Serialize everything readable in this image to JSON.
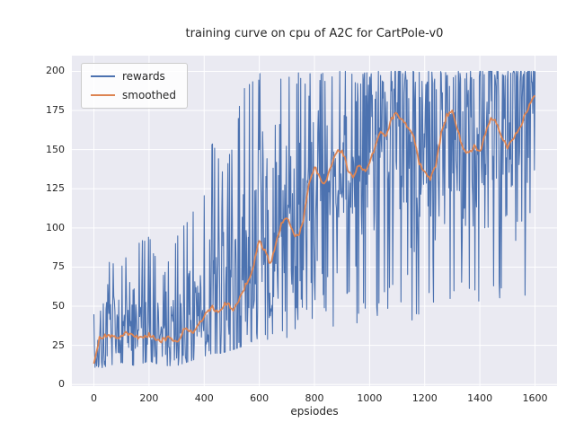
{
  "figure": {
    "background": "#ffffff",
    "panel_background": "#eaeaf2",
    "grid_color": "#ffffff",
    "tick_color": "#262626"
  },
  "chart_data": {
    "type": "line",
    "title": "training curve on cpu of A2C for CartPole-v0",
    "xlabel": "epsiodes",
    "ylabel": "",
    "xlim": [
      -80,
      1680
    ],
    "ylim": [
      -1,
      210
    ],
    "x_ticks": [
      0,
      200,
      400,
      600,
      800,
      1000,
      1200,
      1400,
      1600
    ],
    "y_ticks": [
      0,
      25,
      50,
      75,
      100,
      125,
      150,
      175,
      200
    ],
    "grid": true,
    "legend": {
      "position": "upper-left",
      "entries": [
        "rewards",
        "smoothed"
      ]
    },
    "series": [
      {
        "name": "rewards",
        "color": "#4c72b0",
        "style": "noisy-per-episode",
        "envelope": {
          "x": [
            0,
            50,
            100,
            150,
            200,
            250,
            300,
            350,
            400,
            430,
            460,
            500,
            550,
            600,
            650,
            700,
            750,
            800,
            850,
            900,
            950,
            1000,
            1050,
            1100,
            1150,
            1200,
            1250,
            1300,
            1350,
            1400,
            1450,
            1500,
            1550,
            1600
          ],
          "min": [
            9,
            12,
            14,
            12,
            15,
            12,
            12,
            15,
            18,
            20,
            20,
            22,
            25,
            30,
            28,
            30,
            30,
            38,
            35,
            40,
            35,
            40,
            45,
            50,
            40,
            30,
            35,
            45,
            40,
            35,
            50,
            45,
            55,
            60
          ],
          "max": [
            45,
            80,
            78,
            90,
            95,
            70,
            95,
            110,
            125,
            157,
            140,
            150,
            200,
            200,
            200,
            200,
            200,
            200,
            200,
            200,
            200,
            200,
            200,
            200,
            200,
            200,
            200,
            200,
            200,
            200,
            200,
            200,
            200,
            200
          ]
        }
      },
      {
        "name": "smoothed",
        "color": "#dd8452",
        "style": "smoothed-trend",
        "points": {
          "x": [
            0,
            20,
            50,
            80,
            120,
            160,
            200,
            240,
            280,
            300,
            330,
            360,
            400,
            430,
            450,
            480,
            510,
            540,
            570,
            600,
            620,
            640,
            660,
            680,
            700,
            720,
            740,
            760,
            780,
            800,
            820,
            840,
            860,
            880,
            900,
            920,
            940,
            960,
            980,
            1000,
            1020,
            1040,
            1060,
            1080,
            1100,
            1120,
            1140,
            1160,
            1180,
            1200,
            1220,
            1240,
            1260,
            1280,
            1300,
            1320,
            1340,
            1360,
            1380,
            1400,
            1420,
            1440,
            1460,
            1480,
            1500,
            1520,
            1540,
            1560,
            1580,
            1600
          ],
          "y": [
            14,
            30,
            32,
            30,
            33,
            30,
            32,
            28,
            30,
            26,
            36,
            33,
            44,
            50,
            46,
            52,
            48,
            60,
            70,
            92,
            85,
            77,
            90,
            103,
            106,
            98,
            94,
            106,
            127,
            140,
            132,
            128,
            140,
            148,
            150,
            138,
            132,
            140,
            136,
            142,
            152,
            162,
            158,
            170,
            173,
            168,
            165,
            158,
            142,
            136,
            132,
            140,
            160,
            172,
            175,
            162,
            150,
            148,
            152,
            148,
            160,
            170,
            168,
            158,
            152,
            158,
            162,
            170,
            178,
            186
          ]
        }
      }
    ]
  }
}
